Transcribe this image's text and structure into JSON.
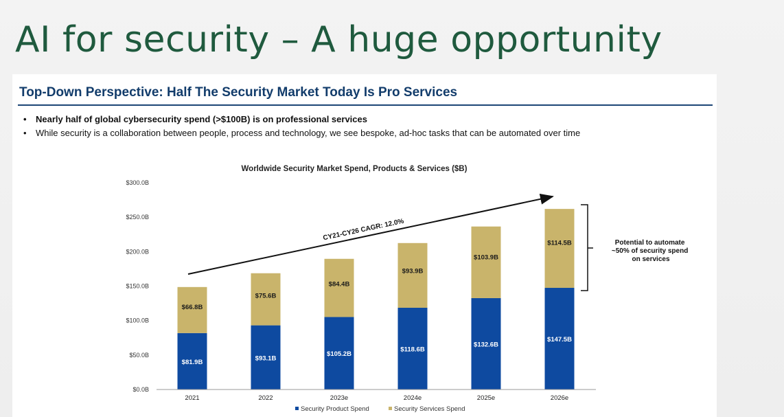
{
  "slide_title": "AI for security – A huge opportunity",
  "subheading": "Top-Down Perspective: Half The Security Market Today Is Pro Services",
  "bullets": [
    "Nearly half of global cybersecurity spend (>$100B) is on professional services",
    "While security is a collaboration between people, process and technology, we see bespoke, ad-hoc tasks that can be automated over time"
  ],
  "bullet_glyph": "•",
  "colors": {
    "title": "#1f5a3e",
    "subhead": "#123c6b",
    "product": "#0e4aa0",
    "services": "#c9b46b"
  },
  "chart_data": {
    "type": "bar",
    "stacked": true,
    "title": "Worldwide Security Market Spend, Products & Services ($B)",
    "categories": [
      "2021",
      "2022",
      "2023e",
      "2024e",
      "2025e",
      "2026e"
    ],
    "series": [
      {
        "name": "Security Product Spend",
        "values": [
          81.9,
          93.1,
          105.2,
          118.6,
          132.6,
          147.5
        ],
        "labels": [
          "$81.9B",
          "$93.1B",
          "$105.2B",
          "$118.6B",
          "$132.6B",
          "$147.5B"
        ],
        "color": "#0e4aa0"
      },
      {
        "name": "Security Services Spend",
        "values": [
          66.8,
          75.6,
          84.4,
          93.9,
          103.9,
          114.5
        ],
        "labels": [
          "$66.8B",
          "$75.6B",
          "$84.4B",
          "$93.9B",
          "$103.9B",
          "$114.5B"
        ],
        "color": "#c9b46b"
      }
    ],
    "ylim": [
      0,
      300
    ],
    "yticks": [
      0,
      50,
      100,
      150,
      200,
      250,
      300
    ],
    "ytick_labels": [
      "$0.0B",
      "$50.0B",
      "$100.0B",
      "$150.0B",
      "$200.0B",
      "$250.0B",
      "$300.0B"
    ],
    "grid": false,
    "legend_position": "bottom",
    "annotations": {
      "cagr": "CY21-CY26 CAGR: 12.0%",
      "automate": [
        "Potential to automate",
        "~50% of security spend",
        "on services"
      ]
    }
  }
}
